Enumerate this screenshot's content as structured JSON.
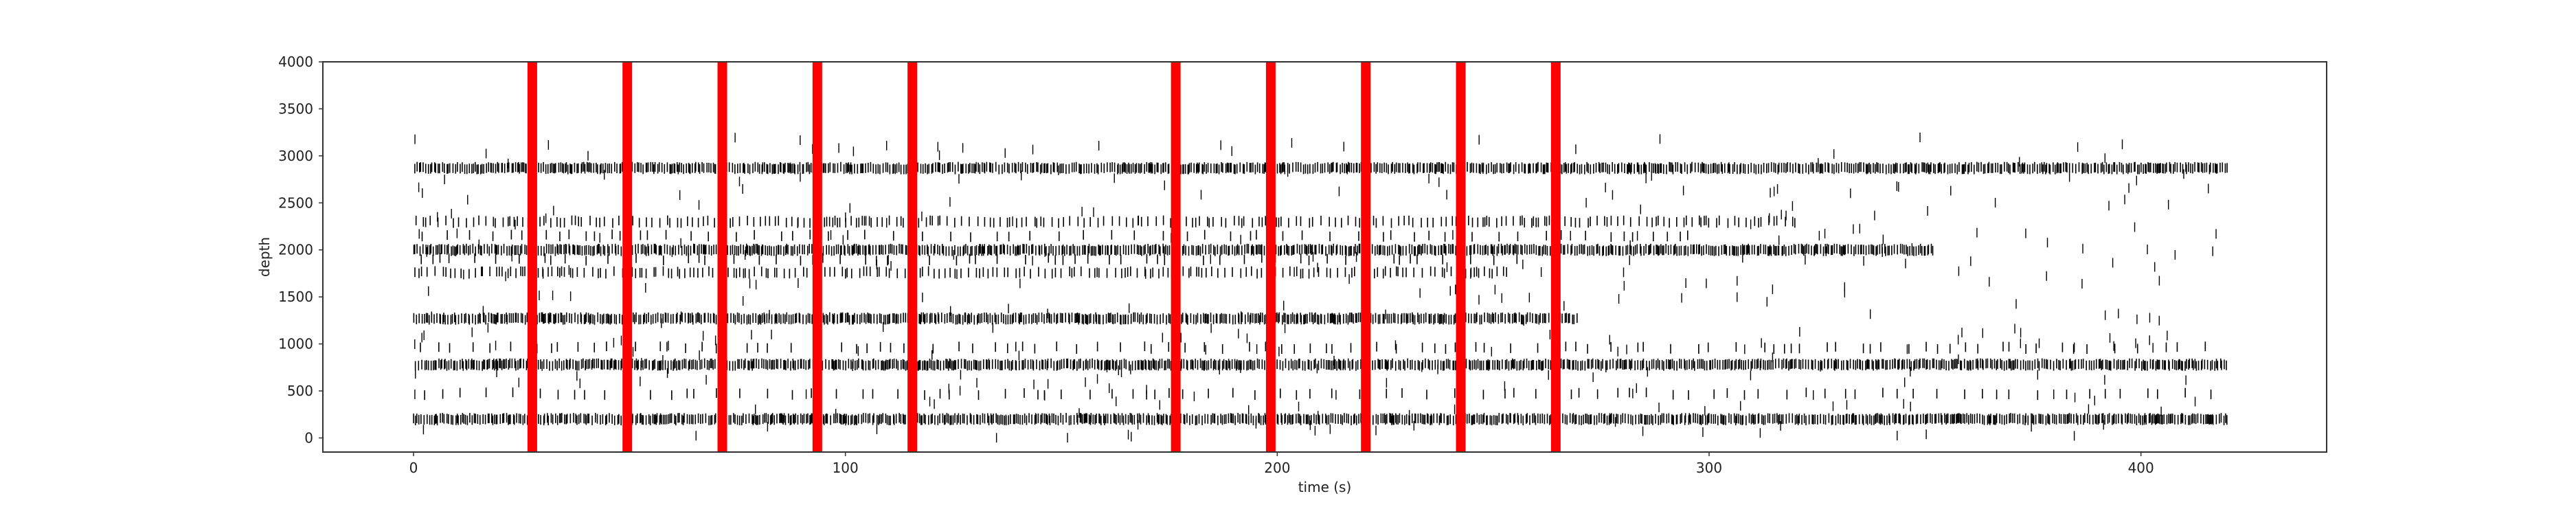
{
  "chart_data": {
    "type": "scatter",
    "style": "spike raster with event markers",
    "title": "",
    "xlabel": "time (s)",
    "ylabel": "depth",
    "xlim": [
      -21,
      443
    ],
    "ylim": [
      -150,
      4000
    ],
    "xticks": [
      0,
      100,
      200,
      300,
      400
    ],
    "yticks": [
      0,
      500,
      1000,
      1500,
      2000,
      2500,
      3000,
      3500,
      4000
    ],
    "grid": false,
    "legend": "none",
    "colors": {
      "spikes": "#000000",
      "events": "#ff0000",
      "frame": "#333333"
    },
    "event_times_s": [
      27.5,
      49.5,
      71.5,
      93.5,
      115.5,
      176.5,
      198.5,
      220.5,
      242.5,
      264.5
    ],
    "spike_units": [
      {
        "depth": 2870,
        "start": 0,
        "end": 420,
        "density": "dense"
      },
      {
        "depth": 2300,
        "start": 0,
        "end": 320,
        "density": "medium"
      },
      {
        "depth": 2150,
        "start": 0,
        "end": 300,
        "density": "sparse"
      },
      {
        "depth": 2000,
        "start": 0,
        "end": 352,
        "density": "dense"
      },
      {
        "depth": 1900,
        "start": 0,
        "end": 260,
        "density": "sparse"
      },
      {
        "depth": 1760,
        "start": 0,
        "end": 255,
        "density": "medium"
      },
      {
        "depth": 1270,
        "start": 0,
        "end": 270,
        "density": "dense"
      },
      {
        "depth": 960,
        "start": 0,
        "end": 420,
        "density": "sparse"
      },
      {
        "depth": 780,
        "start": 0,
        "end": 420,
        "density": "dense"
      },
      {
        "depth": 470,
        "start": 0,
        "end": 420,
        "density": "sparse"
      },
      {
        "depth": 200,
        "start": 0,
        "end": 420,
        "density": "dense"
      }
    ],
    "scattered_spikes_depth_range": [
      0,
      3200
    ]
  }
}
